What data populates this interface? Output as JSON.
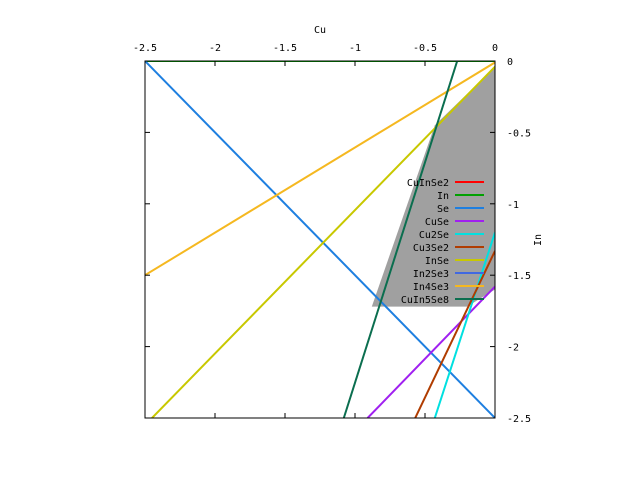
{
  "chart_data": {
    "type": "line",
    "title": "",
    "xlabel": "Cu",
    "ylabel": "In",
    "xlim": [
      -2.5,
      0
    ],
    "ylim": [
      -2.5,
      0
    ],
    "x_axis_position": "top",
    "y_axis_position": "right",
    "x_ticks": [
      -2.5,
      -2,
      -1.5,
      -1,
      -0.5,
      0
    ],
    "y_ticks": [
      0,
      -0.5,
      -1,
      -1.5,
      -2,
      -2.5
    ],
    "x_tick_labels": [
      "-2.5",
      "-2",
      "-1.5",
      "-1",
      "-0.5",
      "0"
    ],
    "y_tick_labels": [
      "0",
      "-0.5",
      "-1",
      "-1.5",
      "-2",
      "-2.5"
    ],
    "grid": false,
    "legend_position": "right-middle, inside plot",
    "shaded_region": {
      "color": "#a0a0a0",
      "points": [
        [
          0,
          -0.04
        ],
        [
          0,
          -1.6
        ],
        [
          -0.2,
          -1.72
        ],
        [
          -0.88,
          -1.72
        ],
        [
          -0.43,
          -0.45
        ]
      ]
    },
    "series": [
      {
        "name": "CuInSe2",
        "color": "#ff0000",
        "points": [
          [
            0,
            -2.6
          ],
          [
            0,
            -2.6
          ]
        ]
      },
      {
        "name": "In",
        "color": "#00a000",
        "points": [
          [
            -2.5,
            0
          ],
          [
            0,
            0
          ]
        ]
      },
      {
        "name": "Se",
        "color": "#1e7fe0",
        "points": [
          [
            -2.5,
            0
          ],
          [
            0,
            -2.5
          ]
        ]
      },
      {
        "name": "CuSe",
        "color": "#a020f0",
        "points": [
          [
            -0.91,
            -2.5
          ],
          [
            0,
            -1.58
          ]
        ]
      },
      {
        "name": "Cu2Se",
        "color": "#00e0e0",
        "points": [
          [
            -0.43,
            -2.5
          ],
          [
            0,
            -1.2
          ]
        ]
      },
      {
        "name": "Cu3Se2",
        "color": "#b03c00",
        "points": [
          [
            -0.57,
            -2.5
          ],
          [
            0,
            -1.33
          ]
        ]
      },
      {
        "name": "InSe",
        "color": "#c8c800",
        "points": [
          [
            -2.45,
            -2.5
          ],
          [
            0,
            -0.04
          ]
        ]
      },
      {
        "name": "In2Se3",
        "color": "#4169e1",
        "points": [
          [
            -0.25,
            -2.5
          ],
          [
            -0.25,
            -2.5
          ]
        ]
      },
      {
        "name": "In4Se3",
        "color": "#f5b820",
        "points": [
          [
            -2.5,
            -1.5
          ],
          [
            0,
            -0.01
          ]
        ]
      },
      {
        "name": "CuIn5Se8",
        "color": "#0b6e4f",
        "points": [
          [
            -1.08,
            -2.5
          ],
          [
            -0.27,
            0
          ]
        ]
      }
    ]
  }
}
